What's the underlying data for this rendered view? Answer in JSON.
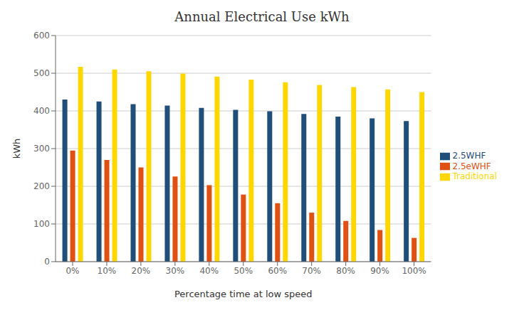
{
  "chart_data": {
    "type": "bar",
    "title": "Annual Electrical Use kWh",
    "xlabel": "Percentage time at low speed",
    "ylabel": "kWh",
    "categories": [
      "0%",
      "10%",
      "20%",
      "30%",
      "40%",
      "50%",
      "60%",
      "70%",
      "80%",
      "90%",
      "100%"
    ],
    "series": [
      {
        "name": "2.5WHF",
        "color": "#1F4E79",
        "values": [
          430,
          425,
          418,
          414,
          408,
          403,
          399,
          392,
          385,
          380,
          373
        ]
      },
      {
        "name": "2.5eWHF",
        "color": "#E05010",
        "values": [
          295,
          270,
          250,
          226,
          203,
          178,
          155,
          130,
          108,
          84,
          63
        ]
      },
      {
        "name": "Traditional",
        "color": "#FFD700",
        "values": [
          517,
          510,
          505,
          499,
          491,
          483,
          476,
          469,
          463,
          457,
          450
        ]
      }
    ],
    "ylim": [
      0,
      600
    ],
    "yticks": [
      0,
      100,
      200,
      300,
      400,
      500,
      600
    ],
    "grid": true,
    "legend": "right"
  }
}
